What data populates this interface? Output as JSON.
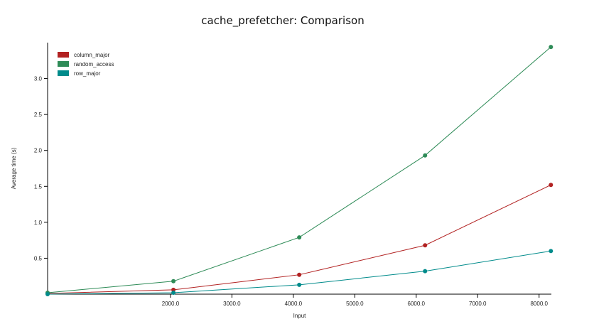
{
  "chart_data": {
    "type": "line",
    "title": "cache_prefetcher: Comparison",
    "xlabel": "Input",
    "ylabel": "Average time (s)",
    "xlim": [
      0,
      8200
    ],
    "ylim": [
      0,
      3.5
    ],
    "xticks": [
      2000,
      3000,
      4000,
      5000,
      6000,
      7000,
      8000
    ],
    "xtick_labels": [
      "2000.0",
      "3000.0",
      "4000.0",
      "5000.0",
      "6000.0",
      "7000.0",
      "8000.0"
    ],
    "yticks": [
      0.5,
      1.0,
      1.5,
      2.0,
      2.5,
      3.0
    ],
    "ytick_labels": [
      "0.5",
      "1.0",
      "1.5",
      "2.0",
      "2.5",
      "3.0"
    ],
    "grid": false,
    "legend_position": "top-left",
    "x": [
      0,
      2048,
      4096,
      6144,
      8192
    ],
    "series": [
      {
        "name": "column_major",
        "color": "#b22222",
        "values": [
          0.01,
          0.06,
          0.27,
          0.68,
          1.52
        ]
      },
      {
        "name": "random_access",
        "color": "#2e8b57",
        "values": [
          0.02,
          0.18,
          0.79,
          1.93,
          3.44
        ]
      },
      {
        "name": "row_major",
        "color": "#008b8b",
        "values": [
          0.0,
          0.02,
          0.13,
          0.32,
          0.6
        ]
      }
    ]
  }
}
